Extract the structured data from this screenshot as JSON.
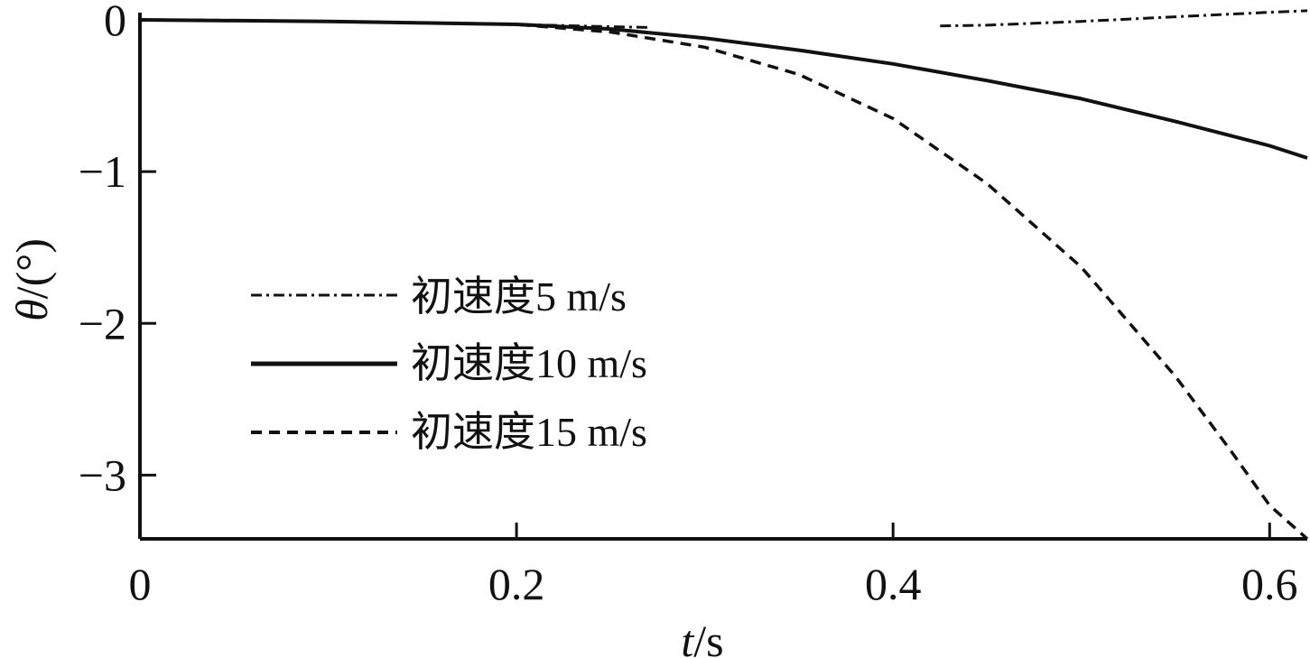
{
  "chart_data": {
    "type": "line",
    "xlabel_var": "t",
    "xlabel_unit": "/s",
    "ylabel_var": "θ",
    "ylabel_unit": "/(°)",
    "xlim": [
      0,
      0.62
    ],
    "ylim": [
      -3.42,
      0
    ],
    "xticks": [
      0,
      0.2,
      0.4,
      0.6
    ],
    "xtick_labels": [
      "0",
      "0.2",
      "0.4",
      "0.6"
    ],
    "yticks": [
      0,
      -1,
      -2,
      -3
    ],
    "ytick_labels": [
      "0",
      "−1",
      "−2",
      "−3"
    ],
    "grid": false,
    "legend_position": "center-left",
    "series": [
      {
        "name": "初速度5 m/s",
        "style": "dashdot",
        "color": "#111111",
        "segments": [
          {
            "x": [
              0,
              0.05,
              0.1,
              0.15,
              0.2,
              0.25,
              0.27
            ],
            "y": [
              0,
              -0.005,
              -0.01,
              -0.02,
              -0.03,
              -0.045,
              -0.05
            ]
          },
          {
            "x": [
              0.425,
              0.45,
              0.5,
              0.55,
              0.6,
              0.62
            ],
            "y": [
              -0.04,
              -0.035,
              -0.01,
              0.02,
              0.05,
              0.06
            ]
          }
        ]
      },
      {
        "name": "初速度10 m/s",
        "style": "solid",
        "color": "#111111",
        "x": [
          0,
          0.1,
          0.2,
          0.25,
          0.3,
          0.35,
          0.4,
          0.45,
          0.5,
          0.55,
          0.6,
          0.62
        ],
        "y": [
          0,
          -0.01,
          -0.03,
          -0.06,
          -0.12,
          -0.2,
          -0.29,
          -0.4,
          -0.52,
          -0.67,
          -0.83,
          -0.91
        ]
      },
      {
        "name": "初速度15 m/s",
        "style": "dashed",
        "color": "#111111",
        "x": [
          0,
          0.1,
          0.2,
          0.25,
          0.3,
          0.35,
          0.4,
          0.45,
          0.5,
          0.55,
          0.58,
          0.6,
          0.62
        ],
        "y": [
          0,
          -0.01,
          -0.03,
          -0.08,
          -0.18,
          -0.36,
          -0.65,
          -1.08,
          -1.63,
          -2.35,
          -2.85,
          -3.2,
          -3.42
        ]
      }
    ]
  }
}
